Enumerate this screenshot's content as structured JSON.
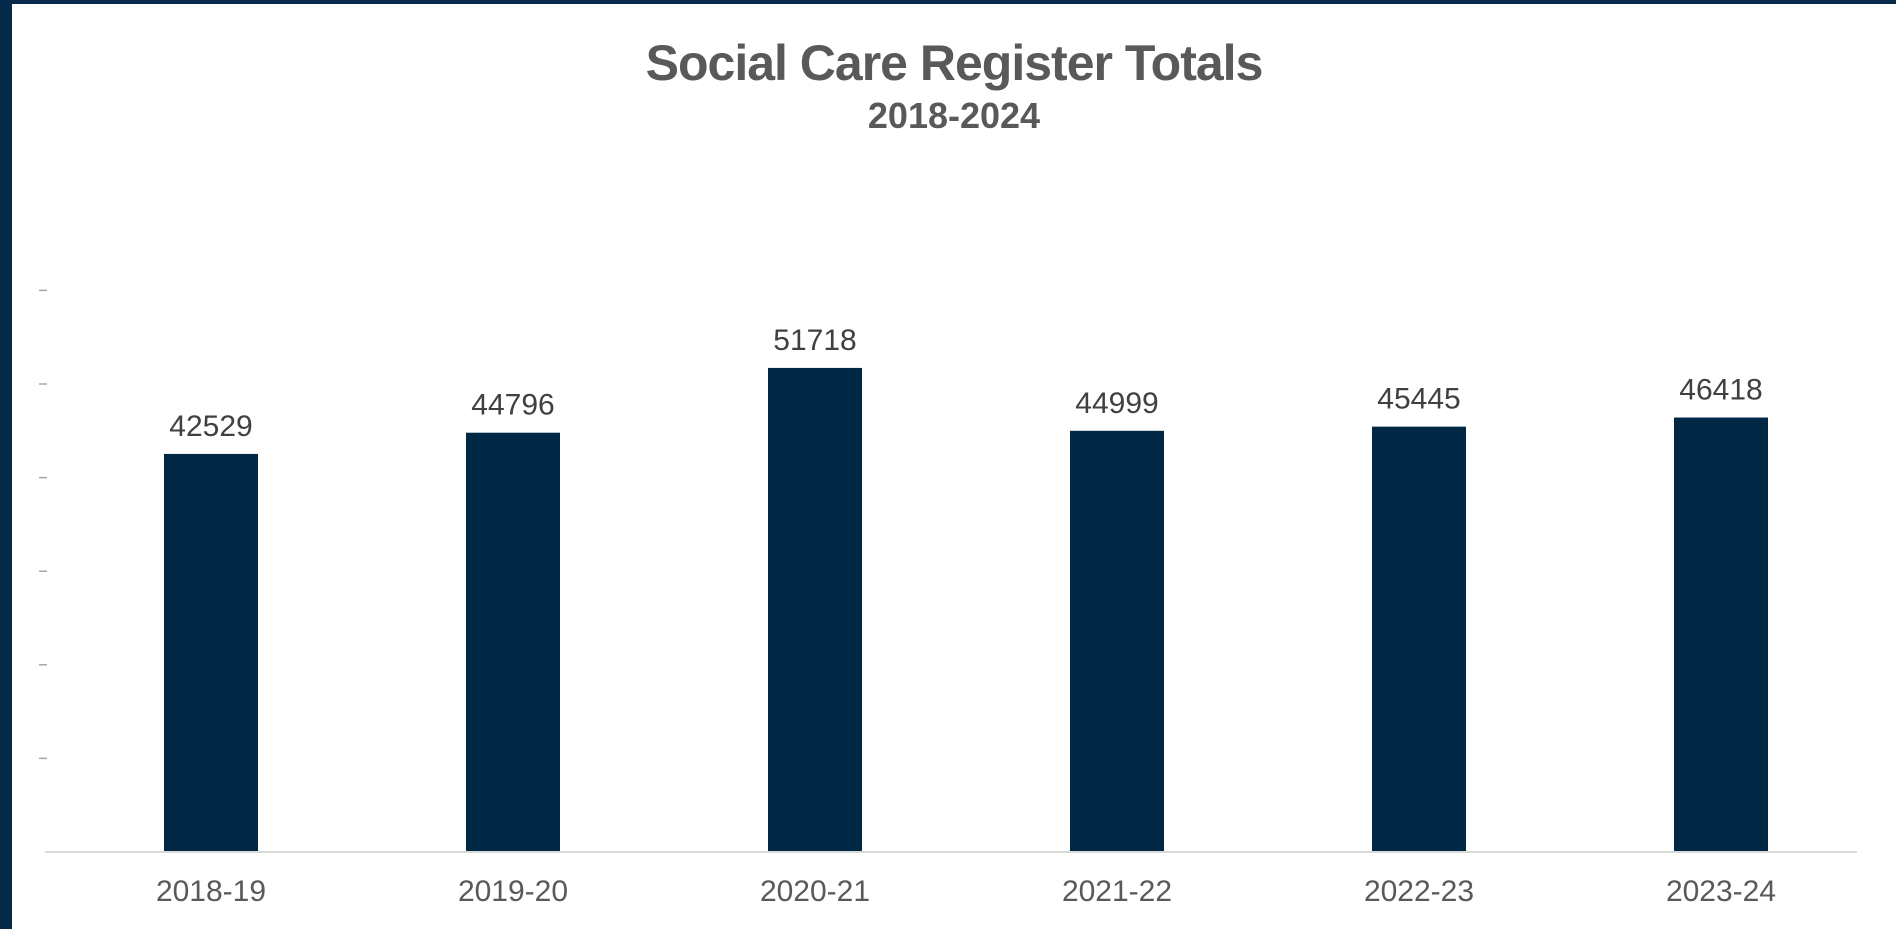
{
  "chart_data": {
    "type": "bar",
    "title": "Social Care Register Totals",
    "subtitle": "2018-2024",
    "categories": [
      "2018-19",
      "2019-20",
      "2020-21",
      "2021-22",
      "2022-23",
      "2023-24"
    ],
    "values": [
      42529,
      44796,
      51718,
      44999,
      45445,
      46418
    ],
    "xlabel": "",
    "ylabel": "",
    "ylim": [
      0,
      60000
    ],
    "y_tick_labels_shown": false,
    "data_labels": true,
    "grid": false,
    "legend": "none",
    "bar_color": "#002744",
    "axis_color": "#d9d9d9"
  }
}
